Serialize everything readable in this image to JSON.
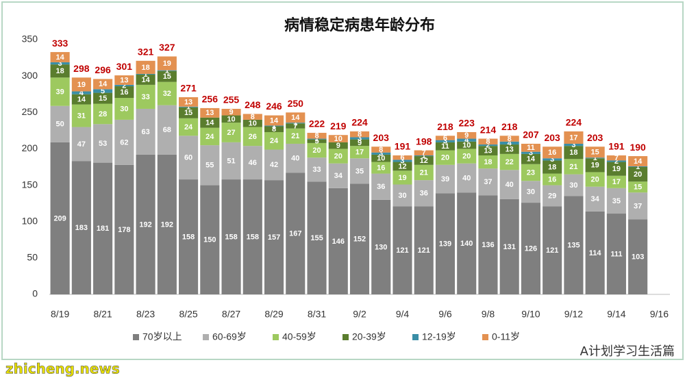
{
  "chart_data": {
    "type": "stacked_bar",
    "title": "病情稳定病患年龄分布",
    "categories": [
      "8/19",
      null,
      "8/21",
      null,
      "8/23",
      null,
      "8/25",
      null,
      "8/27",
      null,
      "8/29",
      null,
      "8/31",
      null,
      "9/2",
      null,
      "9/4",
      null,
      "9/6",
      null,
      "9/8",
      null,
      "9/10",
      null,
      "9/12",
      null,
      "9/14",
      null,
      "9/16"
    ],
    "series": [
      {
        "name": "70岁以上",
        "color": "#7f7f7f",
        "values": [
          209,
          183,
          181,
          178,
          192,
          192,
          158,
          150,
          158,
          158,
          157,
          167,
          155,
          146,
          152,
          130,
          121,
          121,
          139,
          140,
          136,
          131,
          126,
          121,
          135,
          114,
          111,
          103,
          null
        ]
      },
      {
        "name": "60-69岁",
        "color": "#afafaf",
        "values": [
          50,
          47,
          53,
          62,
          63,
          68,
          60,
          55,
          51,
          46,
          42,
          40,
          33,
          34,
          35,
          36,
          30,
          36,
          39,
          40,
          37,
          40,
          30,
          29,
          30,
          34,
          35,
          37,
          null
        ]
      },
      {
        "name": "40-59岁",
        "color": "#9dc95f",
        "values": [
          39,
          31,
          28,
          30,
          33,
          32,
          24,
          24,
          27,
          26,
          24,
          21,
          20,
          20,
          17,
          16,
          19,
          21,
          20,
          20,
          18,
          22,
          23,
          16,
          21,
          20,
          17,
          15,
          null
        ]
      },
      {
        "name": "20-39岁",
        "color": "#5a7d2e",
        "values": [
          18,
          14,
          15,
          16,
          14,
          15,
          15,
          14,
          10,
          10,
          8,
          7,
          5,
          9,
          9,
          10,
          12,
          12,
          11,
          10,
          13,
          13,
          14,
          18,
          18,
          19,
          19,
          20,
          null
        ]
      },
      {
        "name": "12-19岁",
        "color": "#3a8ea6",
        "values": [
          3,
          4,
          5,
          2,
          1,
          1,
          1,
          0,
          0,
          0,
          1,
          1,
          1,
          0,
          3,
          3,
          3,
          1,
          3,
          4,
          2,
          4,
          3,
          3,
          3,
          1,
          2,
          1,
          null
        ]
      },
      {
        "name": "0-11岁",
        "color": "#e39151",
        "values": [
          14,
          19,
          14,
          13,
          18,
          19,
          13,
          13,
          9,
          8,
          14,
          14,
          8,
          10,
          8,
          8,
          6,
          7,
          6,
          9,
          8,
          8,
          11,
          16,
          17,
          15,
          7,
          14,
          null
        ]
      }
    ],
    "totals": [
      333,
      298,
      296,
      301,
      321,
      327,
      271,
      256,
      255,
      248,
      246,
      250,
      222,
      219,
      224,
      203,
      191,
      198,
      218,
      223,
      214,
      218,
      207,
      203,
      224,
      203,
      191,
      190,
      null
    ],
    "ylim": [
      0,
      350
    ],
    "yticks": [
      0,
      50,
      100,
      150,
      200,
      250,
      300,
      350
    ],
    "grid": false,
    "legend": "bottom"
  },
  "watermark": {
    "left": "zhicheng.news",
    "right": "A计划学习生活篇"
  }
}
